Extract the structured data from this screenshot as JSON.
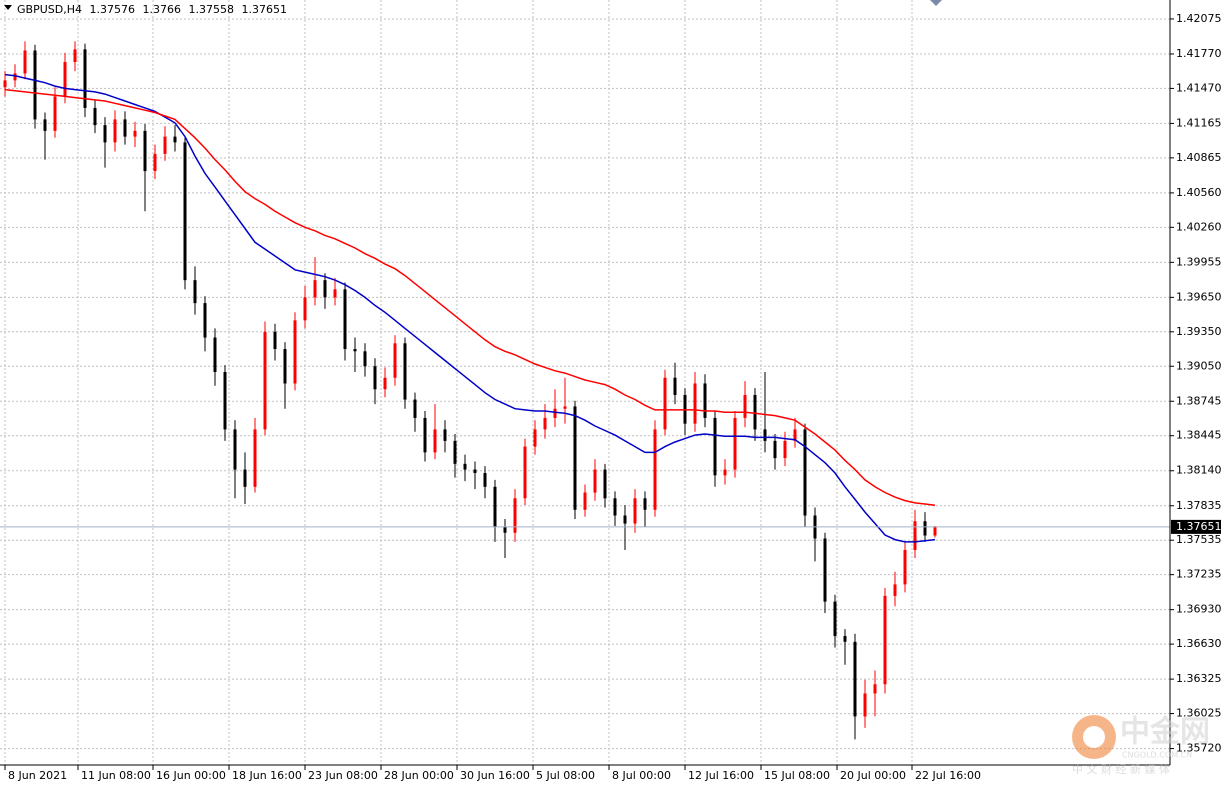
{
  "chart_data": {
    "type": "candlestick",
    "title": "GBPUSD,H4",
    "up_color": "#ff0000",
    "down_color": "#000000",
    "grid": true,
    "open": [
      1.4148,
      1.4154,
      1.416,
      1.418,
      1.412,
      1.411,
      1.414,
      1.417,
      1.4181,
      1.413,
      1.4115,
      1.41,
      1.412,
      1.4105,
      1.411,
      1.4075,
      1.409,
      1.4105,
      1.41,
      1.398,
      1.396,
      1.393,
      1.39,
      1.385,
      1.3815,
      1.38,
      1.385,
      1.3935,
      1.392,
      1.389,
      1.3945,
      1.3965,
      1.398,
      1.3965,
      1.3972,
      1.392,
      1.3918,
      1.3905,
      1.3885,
      1.3895,
      1.3925,
      1.3876,
      1.386,
      1.383,
      1.385,
      1.384,
      1.382,
      1.3815,
      1.3812,
      1.38,
      1.3765,
      1.376,
      1.379,
      1.3835,
      1.385,
      1.386,
      1.3868,
      1.387,
      1.378,
      1.3795,
      1.3815,
      1.379,
      1.3775,
      1.3768,
      1.379,
      1.378,
      1.385,
      1.3895,
      1.388,
      1.3855,
      1.389,
      1.386,
      1.381,
      1.3815,
      1.386,
      1.388,
      1.385,
      1.384,
      1.3825,
      1.384,
      1.385,
      1.3775,
      1.3755,
      1.37,
      1.367,
      1.3665,
      1.36,
      1.362,
      1.3628,
      1.3705,
      1.3715,
      1.3745,
      1.377,
      1.37576
    ],
    "high": [
      1.4162,
      1.4168,
      1.4188,
      1.4185,
      1.4126,
      1.4148,
      1.4178,
      1.4188,
      1.4186,
      1.4137,
      1.4122,
      1.4128,
      1.4127,
      1.4118,
      1.4116,
      1.4098,
      1.4114,
      1.4115,
      1.4104,
      1.3992,
      1.3966,
      1.3938,
      1.3906,
      1.3858,
      1.383,
      1.386,
      1.3944,
      1.3942,
      1.3926,
      1.3952,
      1.3975,
      1.4,
      1.3986,
      1.3982,
      1.3978,
      1.393,
      1.3925,
      1.3912,
      1.3904,
      1.3932,
      1.393,
      1.3882,
      1.3866,
      1.3872,
      1.3858,
      1.3846,
      1.3828,
      1.3822,
      1.3818,
      1.3806,
      1.3772,
      1.3798,
      1.3842,
      1.3858,
      1.3872,
      1.3885,
      1.3895,
      1.3875,
      1.3802,
      1.3824,
      1.382,
      1.3796,
      1.3784,
      1.3798,
      1.3796,
      1.3858,
      1.3902,
      1.3908,
      1.3886,
      1.39,
      1.3898,
      1.3866,
      1.3824,
      1.3866,
      1.3892,
      1.3886,
      1.39,
      1.3846,
      1.3848,
      1.386,
      1.3855,
      1.3782,
      1.376,
      1.3706,
      1.3676,
      1.3672,
      1.3632,
      1.364,
      1.3712,
      1.3726,
      1.3752,
      1.378,
      1.3778,
      1.3766
    ],
    "low": [
      1.414,
      1.4148,
      1.4155,
      1.4112,
      1.4085,
      1.4104,
      1.4134,
      1.4162,
      1.4122,
      1.4108,
      1.4078,
      1.4092,
      1.4098,
      1.4096,
      1.404,
      1.4068,
      1.4084,
      1.4092,
      1.3972,
      1.395,
      1.3918,
      1.3888,
      1.384,
      1.379,
      1.3785,
      1.3795,
      1.3845,
      1.391,
      1.3868,
      1.3884,
      1.3938,
      1.3958,
      1.3955,
      1.3958,
      1.391,
      1.39,
      1.3896,
      1.3872,
      1.3878,
      1.3888,
      1.3868,
      1.3848,
      1.3822,
      1.3824,
      1.383,
      1.3808,
      1.3805,
      1.3798,
      1.379,
      1.3752,
      1.3738,
      1.3752,
      1.3784,
      1.3828,
      1.3842,
      1.3852,
      1.3855,
      1.3772,
      1.3774,
      1.3788,
      1.3782,
      1.3766,
      1.3745,
      1.376,
      1.3765,
      1.3774,
      1.3845,
      1.3872,
      1.3845,
      1.3848,
      1.3852,
      1.38,
      1.3802,
      1.3808,
      1.3852,
      1.384,
      1.383,
      1.3815,
      1.3818,
      1.3834,
      1.3765,
      1.3735,
      1.369,
      1.366,
      1.3645,
      1.358,
      1.359,
      1.36,
      1.362,
      1.3696,
      1.3708,
      1.3738,
      1.3752,
      1.37558
    ],
    "close": [
      1.4154,
      1.416,
      1.418,
      1.412,
      1.411,
      1.414,
      1.417,
      1.4181,
      1.413,
      1.4115,
      1.41,
      1.412,
      1.4105,
      1.411,
      1.4075,
      1.409,
      1.4105,
      1.41,
      1.398,
      1.396,
      1.393,
      1.39,
      1.385,
      1.3815,
      1.38,
      1.385,
      1.3935,
      1.392,
      1.389,
      1.3945,
      1.3965,
      1.398,
      1.3965,
      1.3972,
      1.392,
      1.3918,
      1.3905,
      1.3885,
      1.3895,
      1.3925,
      1.3876,
      1.386,
      1.383,
      1.385,
      1.384,
      1.382,
      1.3815,
      1.3812,
      1.38,
      1.3765,
      1.376,
      1.379,
      1.3835,
      1.385,
      1.386,
      1.3868,
      1.387,
      1.378,
      1.3795,
      1.3815,
      1.379,
      1.3775,
      1.3768,
      1.379,
      1.378,
      1.385,
      1.3895,
      1.388,
      1.3855,
      1.389,
      1.386,
      1.381,
      1.3815,
      1.386,
      1.388,
      1.385,
      1.384,
      1.3825,
      1.384,
      1.385,
      1.3775,
      1.3755,
      1.37,
      1.367,
      1.3665,
      1.36,
      1.362,
      1.3628,
      1.3705,
      1.3715,
      1.3745,
      1.377,
      1.37576,
      1.37651
    ],
    "series": [
      {
        "color": "#0000c8",
        "values": [
          1.4159,
          1.4158,
          1.4156,
          1.4154,
          1.4152,
          1.4149,
          1.4147,
          1.4146,
          1.4145,
          1.4144,
          1.4142,
          1.4139,
          1.4136,
          1.4133,
          1.413,
          1.4127,
          1.4122,
          1.4117,
          1.4105,
          1.4088,
          1.4073,
          1.4061,
          1.4049,
          1.4037,
          1.4025,
          1.4013,
          1.4007,
          1.4001,
          1.3995,
          1.3989,
          1.3987,
          1.3985,
          1.3983,
          1.398,
          1.3976,
          1.3971,
          1.3965,
          1.3958,
          1.3952,
          1.3945,
          1.3938,
          1.3931,
          1.3924,
          1.3917,
          1.391,
          1.3903,
          1.3896,
          1.3889,
          1.3882,
          1.3876,
          1.3872,
          1.3868,
          1.3867,
          1.3866,
          1.3866,
          1.3865,
          1.3864,
          1.3862,
          1.3858,
          1.3853,
          1.3849,
          1.3845,
          1.384,
          1.3835,
          1.383,
          1.383,
          1.3835,
          1.3839,
          1.3842,
          1.3845,
          1.3846,
          1.3845,
          1.3844,
          1.3844,
          1.3844,
          1.3843,
          1.3843,
          1.3843,
          1.3842,
          1.3841,
          1.3835,
          1.3828,
          1.3821,
          1.3812,
          1.38,
          1.3789,
          1.3778,
          1.3768,
          1.3758,
          1.3754,
          1.3752,
          1.3752,
          1.3753,
          1.3754
        ]
      },
      {
        "color": "#ff0000",
        "values": [
          1.4146,
          1.4145,
          1.4144,
          1.4143,
          1.4142,
          1.4141,
          1.414,
          1.4139,
          1.4138,
          1.4137,
          1.4136,
          1.4134,
          1.4132,
          1.413,
          1.4128,
          1.4126,
          1.4123,
          1.412,
          1.4112,
          1.4104,
          1.4095,
          1.4085,
          1.4076,
          1.4066,
          1.4057,
          1.4051,
          1.4046,
          1.404,
          1.4035,
          1.403,
          1.4026,
          1.4023,
          1.4019,
          1.4016,
          1.4012,
          1.4008,
          1.4003,
          1.3999,
          1.3994,
          1.399,
          1.3984,
          1.3977,
          1.397,
          1.3963,
          1.3956,
          1.3949,
          1.3942,
          1.3935,
          1.3928,
          1.3922,
          1.3918,
          1.3915,
          1.3911,
          1.3907,
          1.3904,
          1.3901,
          1.3899,
          1.3896,
          1.3893,
          1.3891,
          1.3889,
          1.3885,
          1.388,
          1.3876,
          1.3871,
          1.3867,
          1.3867,
          1.3867,
          1.3867,
          1.3867,
          1.3866,
          1.3866,
          1.3865,
          1.3865,
          1.3865,
          1.3864,
          1.3863,
          1.3862,
          1.386,
          1.3858,
          1.3852,
          1.3846,
          1.3839,
          1.3832,
          1.3823,
          1.3815,
          1.3806,
          1.38,
          1.3795,
          1.3791,
          1.3788,
          1.3786,
          1.3785,
          1.3784
        ]
      }
    ],
    "xlim": [
      -0.5,
      116.5
    ],
    "xticks": [
      {
        "value": 0,
        "label": "8 Jun 2021"
      },
      {
        "value": 7.3,
        "label": "11 Jun 08:00"
      },
      {
        "value": 14.8,
        "label": "16 Jun 00:00"
      },
      {
        "value": 22.4,
        "label": "18 Jun 16:00"
      },
      {
        "value": 30,
        "label": "23 Jun 08:00"
      },
      {
        "value": 37.6,
        "label": "28 Jun 00:00"
      },
      {
        "value": 45.2,
        "label": "30 Jun 16:00"
      },
      {
        "value": 52.8,
        "label": "5 Jul 08:00"
      },
      {
        "value": 60.4,
        "label": "8 Jul 00:00"
      },
      {
        "value": 68,
        "label": "12 Jul 16:00"
      },
      {
        "value": 75.6,
        "label": "15 Jul 08:00"
      },
      {
        "value": 83.2,
        "label": "20 Jul 00:00"
      },
      {
        "value": 90.7,
        "label": "22 Jul 16:00"
      }
    ],
    "ylim": [
      1.35577,
      1.4224
    ],
    "yticks": [
      1.42075,
      {
        "value": 1.4177,
        "label": "1.41770"
      },
      {
        "value": 1.4147,
        "label": "1.41470"
      },
      1.41165,
      1.40865,
      {
        "value": 1.4056,
        "label": "1.40560"
      },
      {
        "value": 1.4026,
        "label": "1.40260"
      },
      1.39955,
      {
        "value": 1.3965,
        "label": "1.39650"
      },
      {
        "value": 1.3935,
        "label": "1.39350"
      },
      {
        "value": 1.3905,
        "label": "1.39050"
      },
      1.38745,
      1.38445,
      {
        "value": 1.3814,
        "label": "1.38140"
      },
      1.37835,
      1.37535,
      1.37235,
      {
        "value": 1.3693,
        "label": "1.36930"
      },
      {
        "value": 1.3663,
        "label": "1.36630"
      },
      1.36325,
      1.36025,
      {
        "value": 1.3572,
        "label": "1.35720"
      }
    ],
    "watermark": {
      "name": "中金网",
      "site": "CNGOLD.COM.CN",
      "tagline": "中 文 财 经 新 媒 体"
    }
  }
}
